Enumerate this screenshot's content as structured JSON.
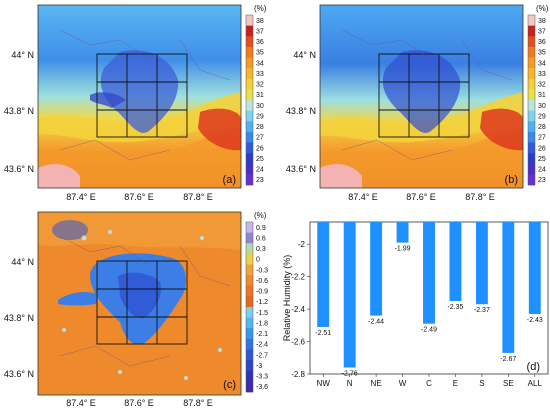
{
  "panel_labels": [
    "(a)",
    "(b)",
    "(c)",
    "(d)"
  ],
  "map_axes": {
    "x_ticks": [
      "87.4° E",
      "87.6° E",
      "87.8° E"
    ],
    "y_ticks": [
      "44° N",
      "43.8° N",
      "43.6° N"
    ]
  },
  "colorbar_unit": "(%)",
  "colorbar_ab": {
    "ticks": [
      "38",
      "37",
      "36",
      "35",
      "34",
      "33",
      "32",
      "31",
      "30",
      "29",
      "28",
      "27",
      "26",
      "25",
      "24",
      "23"
    ],
    "colors": [
      "#f4c7c7",
      "#c81f1f",
      "#e0501f",
      "#f07a20",
      "#f59a28",
      "#f7b52e",
      "#f3cf3a",
      "#e8e24a",
      "#b9e6d8",
      "#7fd3f0",
      "#4fb2f5",
      "#3d86ec",
      "#3059dc",
      "#2e3bc9",
      "#4a2fc2",
      "#6a2fd0"
    ]
  },
  "colorbar_c": {
    "ticks": [
      "0.9",
      "0.6",
      "0.3",
      "0",
      "-0.3",
      "-0.6",
      "-0.9",
      "-1.2",
      "-1.5",
      "-1.8",
      "-2.1",
      "-2.4",
      "-2.7",
      "-3",
      "-3.3",
      "-3.6"
    ],
    "colors": [
      "#c9b7e6",
      "#8d86d6",
      "#b7d9a4",
      "#e8d44c",
      "#f2a43a",
      "#f08a2a",
      "#ec7424",
      "#e5661f",
      "#7fd0ef",
      "#53b7f2",
      "#3a95ee",
      "#3173e3",
      "#2e57d8",
      "#2e44cc",
      "#3030b9",
      "#3d2aa6"
    ]
  },
  "chart_data": {
    "type": "bar",
    "categories": [
      "NW",
      "N",
      "NE",
      "W",
      "C",
      "E",
      "S",
      "SE",
      "ALL"
    ],
    "values": [
      -2.51,
      -2.76,
      -2.44,
      -1.99,
      -2.49,
      -2.35,
      -2.37,
      -2.67,
      -2.43
    ],
    "value_labels": [
      "-2.51",
      "-2.76",
      "-2.44",
      "-1.99",
      "-2.49",
      "-2.35",
      "-2.37",
      "-2.67",
      "-2.43"
    ],
    "ylabel": "Relative Humidity (%)",
    "ylim": [
      -2.8,
      -1.9
    ],
    "yticks": [
      "-2",
      "-2.2",
      "-2.4",
      "-2.6",
      "-2.8"
    ],
    "ytick_values": [
      -2,
      -2.2,
      -2.4,
      -2.6,
      -2.8
    ],
    "bar_color": "#1e90ff",
    "grid": false
  }
}
